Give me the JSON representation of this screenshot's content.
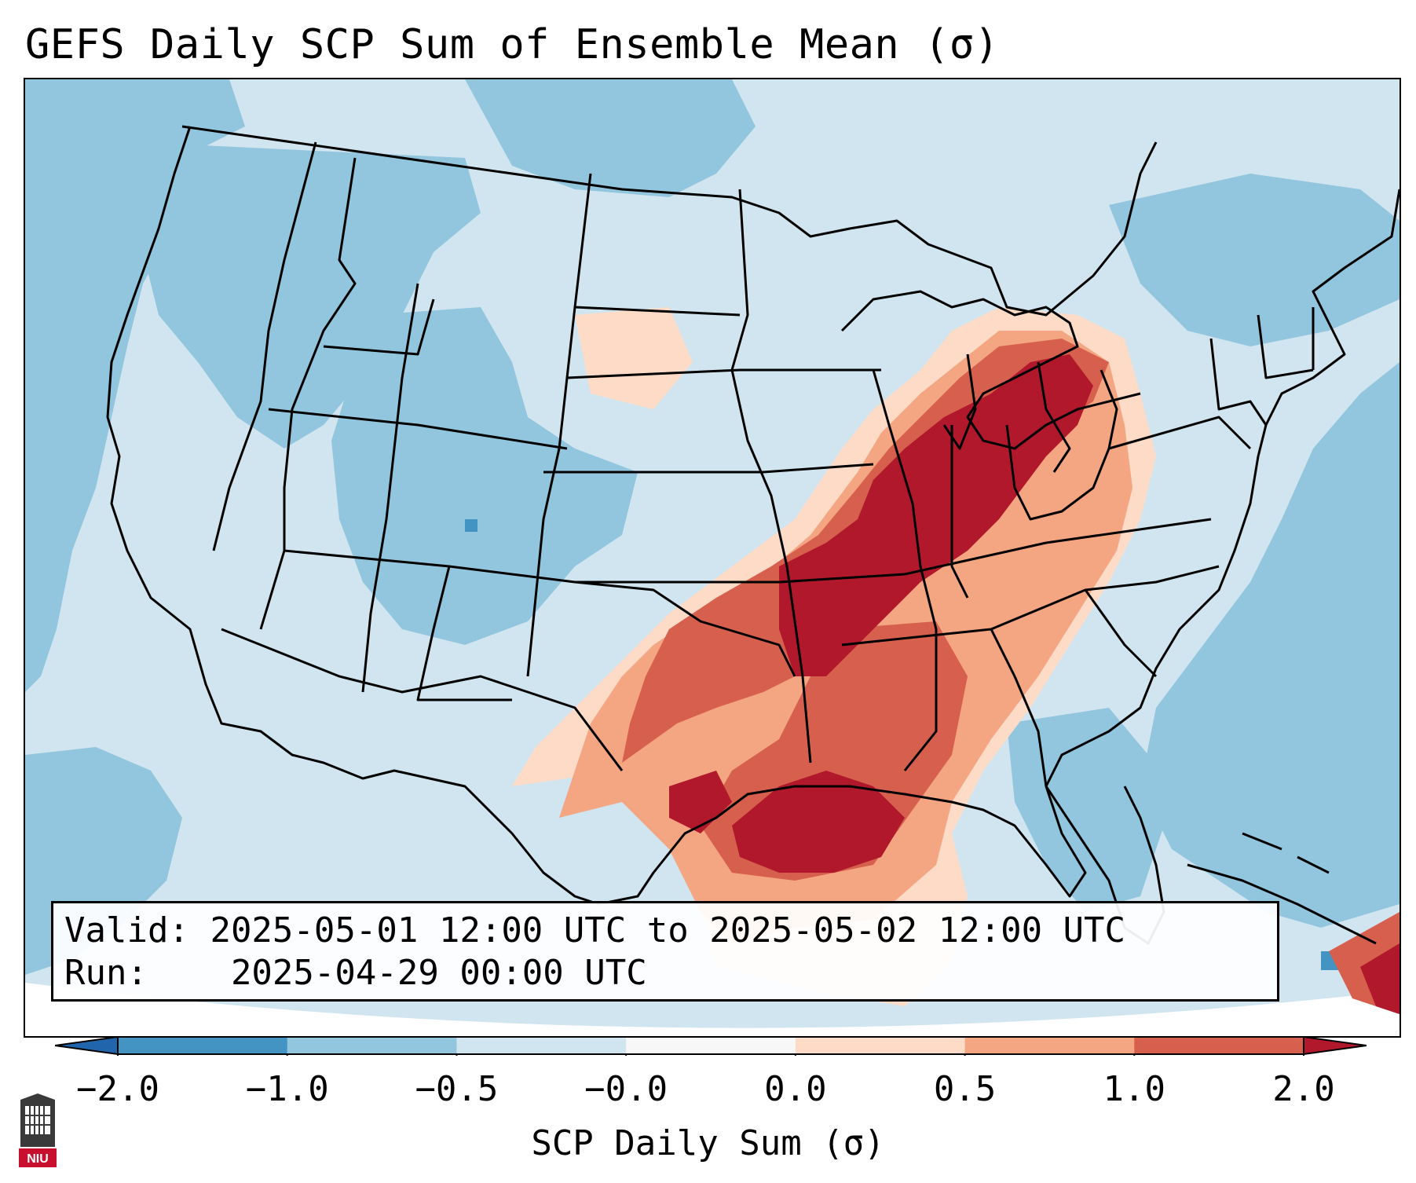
{
  "title": "GEFS Daily SCP Sum of Ensemble Mean (σ)",
  "info": {
    "valid_label": "Valid:",
    "valid_value": "2025-05-01 12:00 UTC to 2025-05-02 12:00 UTC",
    "run_label": "Run:",
    "run_value": "2025-04-29 00:00 UTC"
  },
  "colorbar": {
    "label": "SCP Daily Sum (σ)",
    "extend": "both",
    "tick_labels": [
      "−2.0",
      "−1.0",
      "−0.5",
      "−0.0",
      "0.0",
      "0.5",
      "1.0",
      "2.0"
    ],
    "bin_colors": [
      "#4393c3",
      "#92c5de",
      "#d1e5f0",
      "#f7f7f7",
      "#fddbc7",
      "#f4a582",
      "#d6604d"
    ],
    "under_color": "#2166ac",
    "over_color": "#b2182b"
  },
  "map": {
    "region": "CONUS",
    "background_color": "#d1e5f0",
    "field_colors": {
      "strong_negative": "#4393c3",
      "negative": "#92c5de",
      "near_zero_negative": "#d1e5f0",
      "near_zero_positive": "#fddbc7",
      "positive": "#f4a582",
      "strong_positive": "#d6604d",
      "extreme_positive": "#b2182b"
    }
  },
  "logo": {
    "text": "NIU"
  }
}
